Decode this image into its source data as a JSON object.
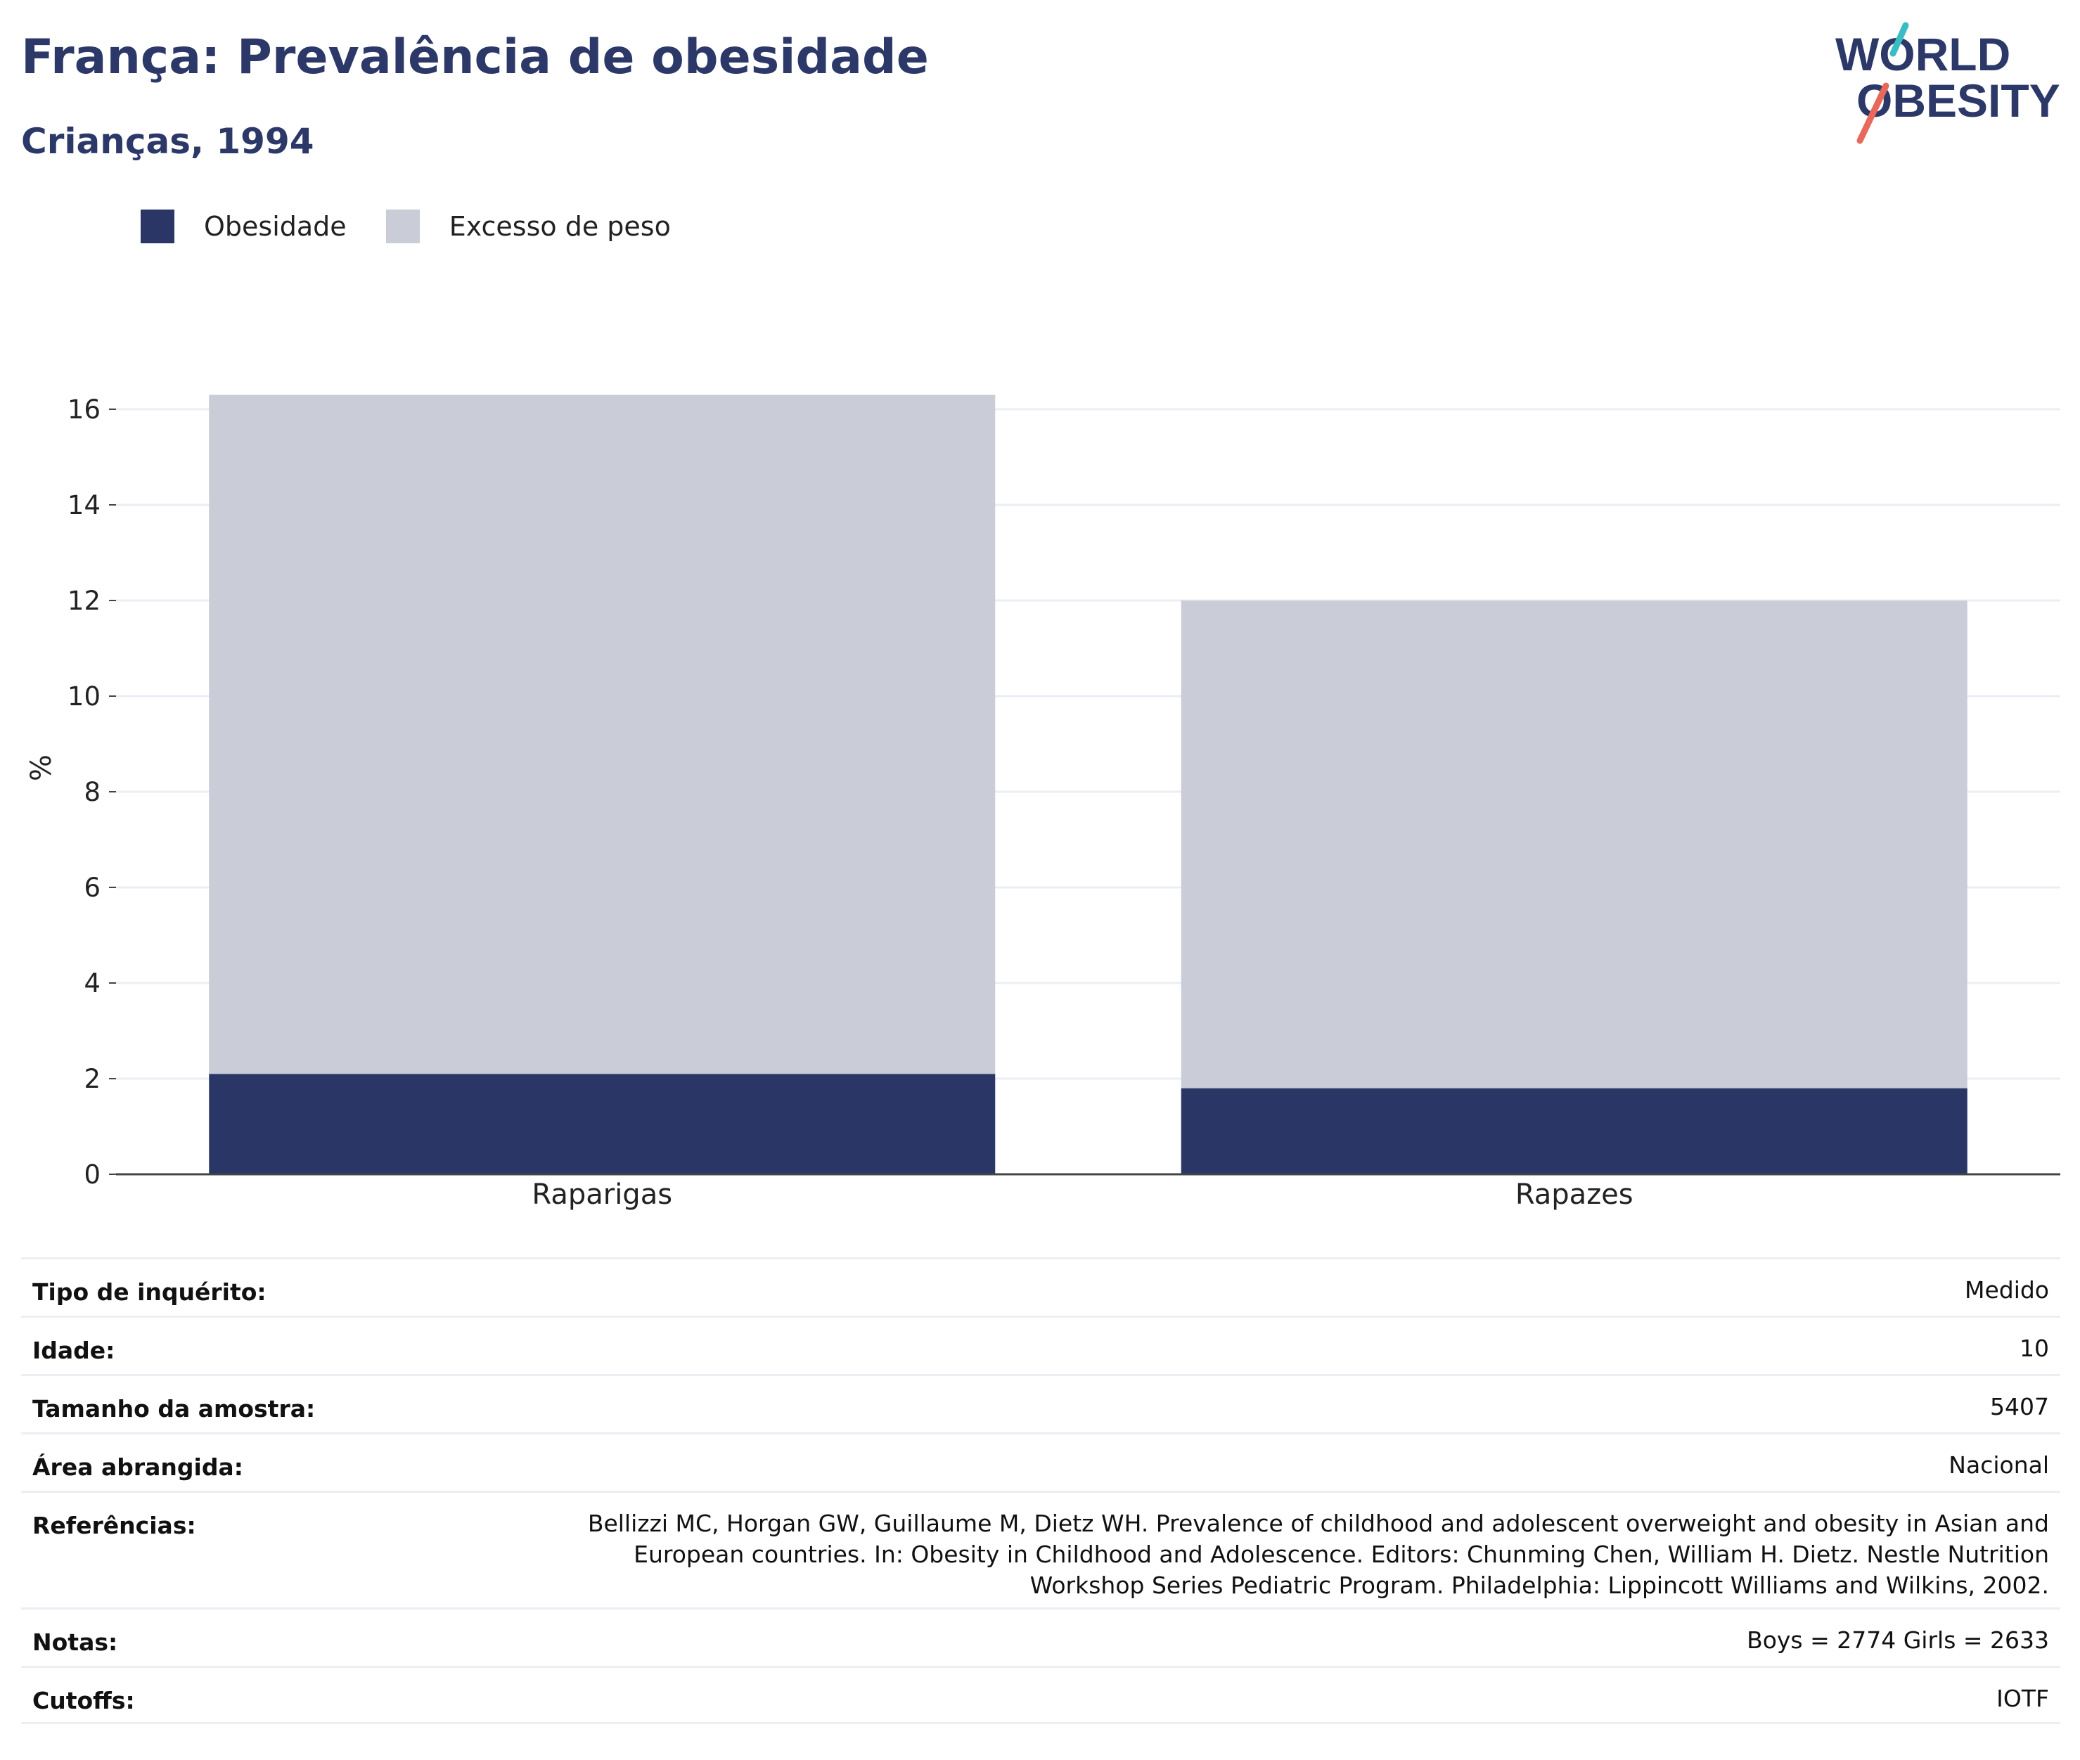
{
  "header": {
    "title": "França: Prevalência de obesidade",
    "subtitle": "Crianças, 1994"
  },
  "logo": {
    "line1": "WORLD",
    "line2": "OBESITY"
  },
  "colors": {
    "obesity": "#2a3766",
    "overweight": "#cacdd8",
    "title": "#2c3868"
  },
  "chart_data": {
    "type": "bar",
    "stacked": true,
    "categories": [
      "Raparigas",
      "Rapazes"
    ],
    "series": [
      {
        "name": "Obesidade",
        "values": [
          2.1,
          1.8
        ]
      },
      {
        "name": "Excesso de peso",
        "values": [
          14.2,
          10.2
        ]
      }
    ],
    "ylabel": "%",
    "ylim": [
      0,
      16.5
    ],
    "yticks": [
      0,
      2,
      4,
      6,
      8,
      10,
      12,
      14,
      16
    ],
    "grid": true,
    "legend": "top-left"
  },
  "meta": [
    {
      "key": "Tipo de inquérito:",
      "value": "Medido"
    },
    {
      "key": "Idade:",
      "value": "10"
    },
    {
      "key": "Tamanho da amostra:",
      "value": "5407"
    },
    {
      "key": "Área abrangida:",
      "value": "Nacional"
    },
    {
      "key": "Referências:",
      "value": "Bellizzi MC, Horgan GW, Guillaume M, Dietz WH. Prevalence of childhood and adolescent overweight and obesity in Asian and European countries. In: Obesity in Childhood and Adolescence. Editors: Chunming Chen, William H. Dietz. Nestle Nutrition Workshop Series Pediatric Program. Philadelphia: Lippincott Williams and Wilkins, 2002."
    },
    {
      "key": "Notas:",
      "value": "Boys = 2774 Girls = 2633"
    },
    {
      "key": "Cutoffs:",
      "value": "IOTF"
    }
  ]
}
